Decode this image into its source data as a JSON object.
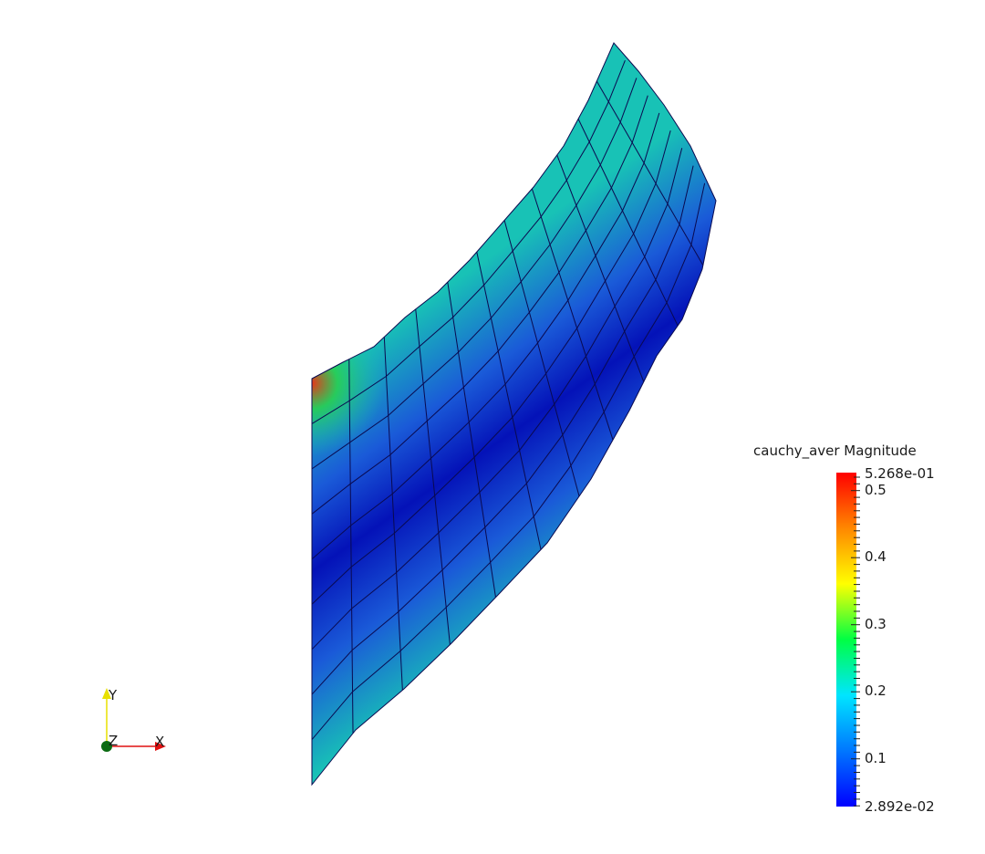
{
  "colorbar": {
    "title": "cauchy_aver Magnitude",
    "max_label": "5.268e-01",
    "min_label": "2.892e-02",
    "max_value": 0.5268,
    "min_value": 0.02892,
    "ticks": [
      {
        "value": 0.5,
        "label": "0.5"
      },
      {
        "value": 0.4,
        "label": "0.4"
      },
      {
        "value": 0.3,
        "label": "0.3"
      },
      {
        "value": 0.2,
        "label": "0.2"
      },
      {
        "value": 0.1,
        "label": "0.1"
      }
    ],
    "colormap": [
      "#0000ff",
      "#0077ff",
      "#00e5ff",
      "#00ff44",
      "#ffff00",
      "#ff8800",
      "#ff0000"
    ]
  },
  "axes": {
    "y_label": "Y",
    "z_label": "Z",
    "x_label": "X",
    "x_color": "#e01010",
    "y_color": "#e8e000",
    "z_color": "#0b6b12"
  },
  "mesh": {
    "line_color": "#0a0a50",
    "colors": {
      "inner": "#0412b8",
      "mid": "#1a5ad8",
      "outer": "#18c2b6",
      "edge_hot": "#2ad14a",
      "corner": "#e8351a"
    }
  }
}
